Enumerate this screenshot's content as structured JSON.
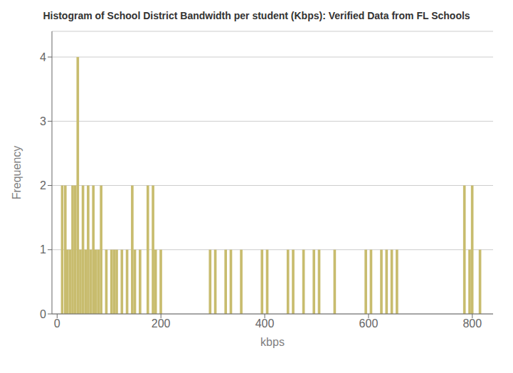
{
  "chart_data": {
    "type": "bar",
    "title": "Histogram of School District Bandwidth per student (Kbps): Verified Data from FL Schools",
    "xlabel": "kbps",
    "ylabel": "Frequency",
    "x": [
      10,
      16,
      20,
      25,
      30,
      35,
      40,
      45,
      50,
      55,
      60,
      65,
      70,
      75,
      80,
      85,
      95,
      105,
      110,
      115,
      125,
      135,
      145,
      150,
      160,
      175,
      185,
      190,
      200,
      295,
      305,
      325,
      335,
      355,
      395,
      405,
      445,
      455,
      475,
      495,
      505,
      535,
      595,
      605,
      625,
      635,
      645,
      655,
      785,
      795,
      800,
      815
    ],
    "values": [
      2,
      2,
      1,
      1,
      2,
      2,
      4,
      1,
      2,
      1,
      2,
      1,
      2,
      1,
      1,
      2,
      1,
      1,
      1,
      1,
      1,
      1,
      2,
      1,
      1,
      2,
      2,
      1,
      1,
      1,
      1,
      1,
      1,
      1,
      1,
      1,
      1,
      1,
      1,
      1,
      1,
      1,
      1,
      1,
      1,
      1,
      1,
      1,
      2,
      1,
      2,
      1
    ],
    "color": "#c8bc6e",
    "xlim": [
      -10,
      840
    ],
    "xticks": [
      0,
      200,
      400,
      600,
      800
    ],
    "ylim": [
      0,
      4.4
    ],
    "yticks": [
      0,
      1,
      2,
      3,
      4
    ],
    "grid": true
  }
}
